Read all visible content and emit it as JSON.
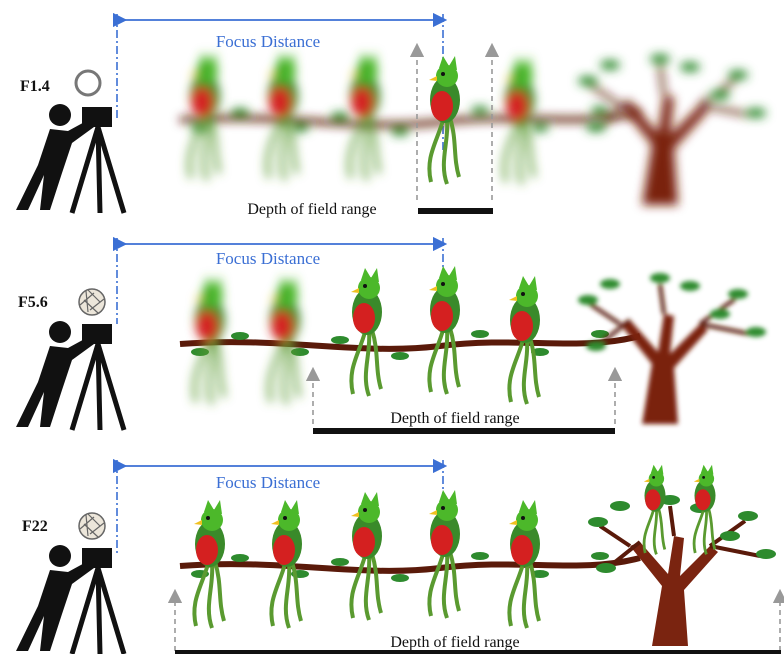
{
  "panels": [
    {
      "aperture": "F1.4",
      "focus_label": "Focus Distance",
      "dof_label": "Depth of field range"
    },
    {
      "aperture": "F5.6",
      "focus_label": "Focus Distance",
      "dof_label": "Depth of field range"
    },
    {
      "aperture": "F22",
      "focus_label": "Focus Distance",
      "dof_label": "Depth of field range"
    }
  ]
}
